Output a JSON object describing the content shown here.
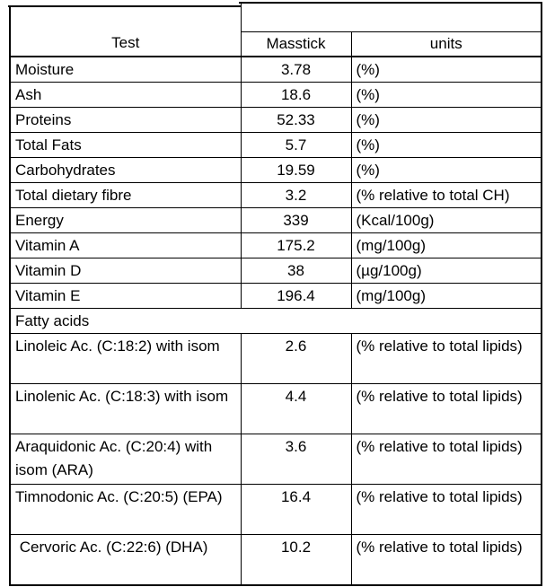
{
  "table": {
    "header": {
      "test": "Test",
      "masstick": "Masstick",
      "units": "units",
      "top_cell": ""
    },
    "body_rows": [
      {
        "test": "Moisture",
        "value": "3.78",
        "units": "(%)"
      },
      {
        "test": "Ash",
        "value": "18.6",
        "units": "(%)"
      },
      {
        "test": "Proteins",
        "value": "52.33",
        "units": "(%)"
      },
      {
        "test": "Total Fats",
        "value": "5.7",
        "units": "(%)"
      },
      {
        "test": "Carbohydrates",
        "value": "19.59",
        "units": "(%)"
      },
      {
        "test": "Total dietary fibre",
        "value": "3.2",
        "units": "(% relative to total CH)"
      },
      {
        "test": "Energy",
        "value": "339",
        "units": "(Kcal/100g)"
      },
      {
        "test": "Vitamin A",
        "value": "175.2",
        "units": "(mg/100g)"
      },
      {
        "test": "Vitamin D",
        "value": "38",
        "units": "(µg/100g)"
      },
      {
        "test": "Vitamin E",
        "value": "196.4",
        "units": "(mg/100g)"
      }
    ],
    "section_label": "Fatty acids",
    "fatty_rows": [
      {
        "test": "Linoleic Ac. (C:18:2) with isom",
        "value": "2.6",
        "units": "(% relative to total lipids)"
      },
      {
        "test": "Linolenic Ac. (C:18:3) with isom",
        "value": "4.4",
        "units": "(% relative to total lipids)"
      },
      {
        "test": "Araquidonic Ac. (C:20:4) with isom (ARA)",
        "value": "3.6",
        "units": "(% relative to total lipids)"
      },
      {
        "test": "Timnodonic Ac. (C:20:5) (EPA)",
        "value": "16.4",
        "units": "(% relative to total lipids)"
      },
      {
        "test": " Cervoric Ac. (C:22:6) (DHA)",
        "value": "10.2",
        "units": "(% relative to total lipids)"
      }
    ],
    "colors": {
      "border": "#000000",
      "text": "#000000",
      "background": "#ffffff"
    }
  }
}
